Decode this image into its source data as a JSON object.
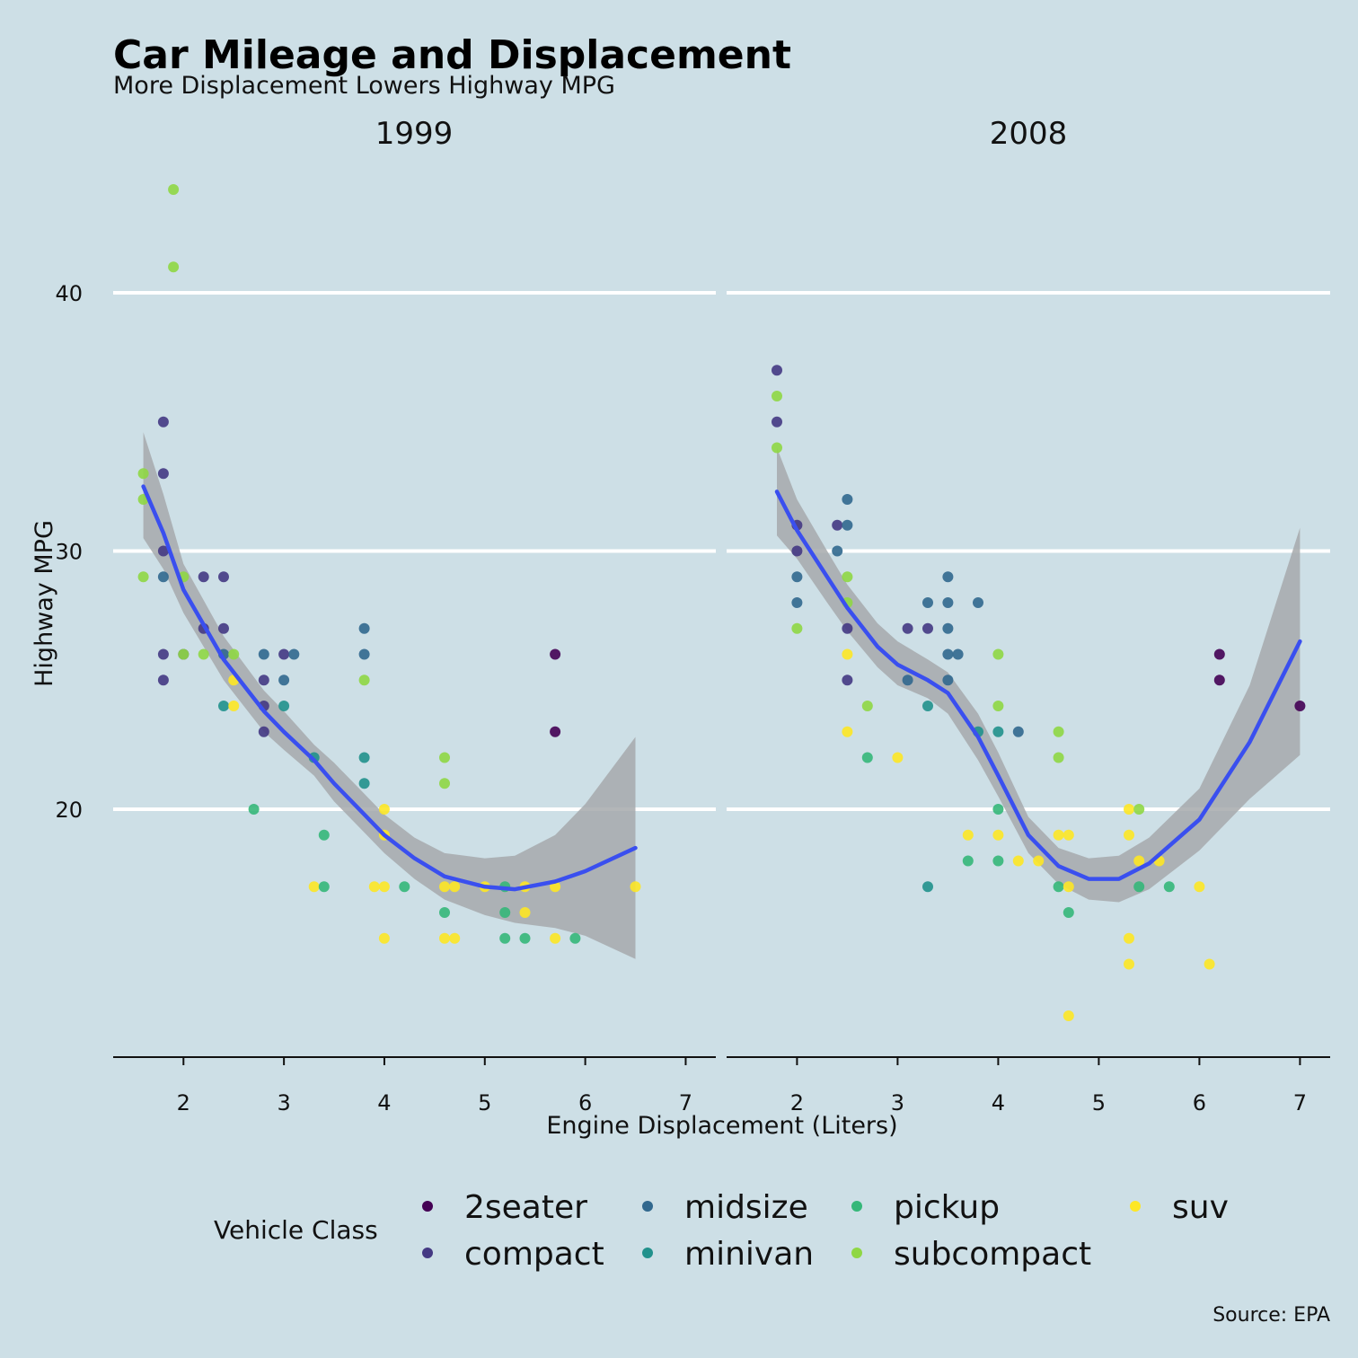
{
  "title": "Car Mileage and Displacement",
  "subtitle": "More Displacement Lowers Highway MPG",
  "caption": "Source: EPA",
  "colors": {
    "background": "#cddfe6",
    "gridline": "#ffffff",
    "smooth_line": "#3a4fef",
    "ribbon": "#a6a9ab"
  },
  "chart_data": {
    "type": "scatter",
    "facets": [
      "1999",
      "2008"
    ],
    "xlabel": "Engine Displacement (Liters)",
    "ylabel": "Highway MPG",
    "xlim": [
      1.3,
      7.3
    ],
    "ylim": [
      10.5,
      44.5
    ],
    "x_ticks": [
      2,
      3,
      4,
      5,
      6,
      7
    ],
    "y_ticks": [
      20,
      30,
      40
    ],
    "grid": "horizontal major",
    "legend": {
      "title": "Vehicle Class",
      "position": "bottom",
      "entries": [
        {
          "name": "2seater",
          "color": "#440154"
        },
        {
          "name": "compact",
          "color": "#443983"
        },
        {
          "name": "midsize",
          "color": "#31688e"
        },
        {
          "name": "minivan",
          "color": "#21918c"
        },
        {
          "name": "pickup",
          "color": "#35b779"
        },
        {
          "name": "subcompact",
          "color": "#8fd744"
        },
        {
          "name": "suv",
          "color": "#fde725"
        }
      ]
    },
    "points": {
      "1999": [
        [
          1.6,
          33,
          "subcompact"
        ],
        [
          1.6,
          32,
          "subcompact"
        ],
        [
          1.6,
          29,
          "subcompact"
        ],
        [
          1.8,
          35,
          "compact"
        ],
        [
          1.8,
          33,
          "compact"
        ],
        [
          1.8,
          30,
          "compact"
        ],
        [
          1.8,
          29,
          "midsize"
        ],
        [
          1.8,
          26,
          "compact"
        ],
        [
          1.8,
          25,
          "compact"
        ],
        [
          1.9,
          44,
          "subcompact"
        ],
        [
          1.9,
          41,
          "subcompact"
        ],
        [
          2.0,
          29,
          "subcompact"
        ],
        [
          2.0,
          26,
          "compact"
        ],
        [
          2.0,
          26,
          "subcompact"
        ],
        [
          2.2,
          29,
          "compact"
        ],
        [
          2.2,
          27,
          "compact"
        ],
        [
          2.2,
          26,
          "subcompact"
        ],
        [
          2.4,
          29,
          "compact"
        ],
        [
          2.4,
          27,
          "compact"
        ],
        [
          2.4,
          26,
          "midsize"
        ],
        [
          2.4,
          24,
          "minivan"
        ],
        [
          2.5,
          26,
          "subcompact"
        ],
        [
          2.5,
          25,
          "suv"
        ],
        [
          2.5,
          24,
          "suv"
        ],
        [
          2.7,
          20,
          "pickup"
        ],
        [
          2.8,
          26,
          "midsize"
        ],
        [
          2.8,
          25,
          "compact"
        ],
        [
          2.8,
          24,
          "compact"
        ],
        [
          2.8,
          23,
          "compact"
        ],
        [
          3.0,
          26,
          "compact"
        ],
        [
          3.0,
          25,
          "midsize"
        ],
        [
          3.0,
          24,
          "minivan"
        ],
        [
          3.1,
          26,
          "midsize"
        ],
        [
          3.3,
          22,
          "minivan"
        ],
        [
          3.3,
          17,
          "suv"
        ],
        [
          3.4,
          19,
          "pickup"
        ],
        [
          3.4,
          17,
          "pickup"
        ],
        [
          3.8,
          27,
          "midsize"
        ],
        [
          3.8,
          26,
          "midsize"
        ],
        [
          3.8,
          25,
          "subcompact"
        ],
        [
          3.8,
          22,
          "minivan"
        ],
        [
          3.8,
          21,
          "minivan"
        ],
        [
          3.9,
          17,
          "suv"
        ],
        [
          4.0,
          20,
          "suv"
        ],
        [
          4.0,
          19,
          "suv"
        ],
        [
          4.0,
          17,
          "suv"
        ],
        [
          4.0,
          15,
          "suv"
        ],
        [
          4.2,
          17,
          "pickup"
        ],
        [
          4.6,
          22,
          "subcompact"
        ],
        [
          4.6,
          21,
          "subcompact"
        ],
        [
          4.6,
          17,
          "suv"
        ],
        [
          4.6,
          16,
          "pickup"
        ],
        [
          4.6,
          15,
          "suv"
        ],
        [
          4.7,
          17,
          "suv"
        ],
        [
          4.7,
          15,
          "suv"
        ],
        [
          5.0,
          17,
          "suv"
        ],
        [
          5.2,
          17,
          "pickup"
        ],
        [
          5.2,
          16,
          "pickup"
        ],
        [
          5.2,
          15,
          "pickup"
        ],
        [
          5.4,
          17,
          "suv"
        ],
        [
          5.4,
          16,
          "suv"
        ],
        [
          5.4,
          15,
          "pickup"
        ],
        [
          5.7,
          26,
          "2seater"
        ],
        [
          5.7,
          23,
          "2seater"
        ],
        [
          5.7,
          17,
          "suv"
        ],
        [
          5.7,
          15,
          "suv"
        ],
        [
          5.9,
          15,
          "pickup"
        ],
        [
          6.5,
          17,
          "suv"
        ]
      ],
      "2008": [
        [
          1.8,
          37,
          "compact"
        ],
        [
          1.8,
          36,
          "subcompact"
        ],
        [
          1.8,
          35,
          "compact"
        ],
        [
          1.8,
          34,
          "subcompact"
        ],
        [
          2.0,
          31,
          "compact"
        ],
        [
          2.0,
          30,
          "compact"
        ],
        [
          2.0,
          29,
          "midsize"
        ],
        [
          2.0,
          28,
          "midsize"
        ],
        [
          2.0,
          27,
          "subcompact"
        ],
        [
          2.4,
          31,
          "compact"
        ],
        [
          2.4,
          30,
          "midsize"
        ],
        [
          2.5,
          32,
          "midsize"
        ],
        [
          2.5,
          31,
          "midsize"
        ],
        [
          2.5,
          29,
          "subcompact"
        ],
        [
          2.5,
          28,
          "subcompact"
        ],
        [
          2.5,
          27,
          "compact"
        ],
        [
          2.5,
          26,
          "suv"
        ],
        [
          2.5,
          25,
          "compact"
        ],
        [
          2.5,
          23,
          "suv"
        ],
        [
          2.7,
          24,
          "subcompact"
        ],
        [
          2.7,
          22,
          "pickup"
        ],
        [
          3.0,
          22,
          "suv"
        ],
        [
          3.1,
          27,
          "compact"
        ],
        [
          3.1,
          25,
          "midsize"
        ],
        [
          3.3,
          28,
          "midsize"
        ],
        [
          3.3,
          27,
          "compact"
        ],
        [
          3.3,
          24,
          "minivan"
        ],
        [
          3.3,
          17,
          "minivan"
        ],
        [
          3.5,
          29,
          "midsize"
        ],
        [
          3.5,
          28,
          "midsize"
        ],
        [
          3.5,
          27,
          "midsize"
        ],
        [
          3.5,
          26,
          "midsize"
        ],
        [
          3.5,
          25,
          "midsize"
        ],
        [
          3.6,
          26,
          "midsize"
        ],
        [
          3.7,
          19,
          "suv"
        ],
        [
          3.7,
          18,
          "pickup"
        ],
        [
          3.8,
          28,
          "midsize"
        ],
        [
          3.8,
          23,
          "minivan"
        ],
        [
          4.0,
          26,
          "subcompact"
        ],
        [
          4.0,
          24,
          "subcompact"
        ],
        [
          4.0,
          23,
          "minivan"
        ],
        [
          4.0,
          20,
          "pickup"
        ],
        [
          4.0,
          19,
          "suv"
        ],
        [
          4.0,
          18,
          "pickup"
        ],
        [
          4.2,
          23,
          "midsize"
        ],
        [
          4.2,
          18,
          "suv"
        ],
        [
          4.4,
          18,
          "suv"
        ],
        [
          4.6,
          23,
          "subcompact"
        ],
        [
          4.6,
          22,
          "subcompact"
        ],
        [
          4.6,
          19,
          "suv"
        ],
        [
          4.6,
          17,
          "pickup"
        ],
        [
          4.7,
          19,
          "suv"
        ],
        [
          4.7,
          17,
          "suv"
        ],
        [
          4.7,
          16,
          "pickup"
        ],
        [
          4.7,
          12,
          "suv"
        ],
        [
          5.3,
          20,
          "suv"
        ],
        [
          5.3,
          19,
          "suv"
        ],
        [
          5.3,
          15,
          "suv"
        ],
        [
          5.3,
          14,
          "suv"
        ],
        [
          5.4,
          20,
          "subcompact"
        ],
        [
          5.4,
          18,
          "suv"
        ],
        [
          5.4,
          17,
          "pickup"
        ],
        [
          5.6,
          18,
          "suv"
        ],
        [
          5.7,
          17,
          "pickup"
        ],
        [
          6.0,
          17,
          "suv"
        ],
        [
          6.1,
          14,
          "suv"
        ],
        [
          6.2,
          26,
          "2seater"
        ],
        [
          6.2,
          25,
          "2seater"
        ],
        [
          7.0,
          24,
          "2seater"
        ]
      ]
    },
    "smooth": {
      "method": "loess",
      "1999": {
        "x": [
          1.6,
          1.8,
          2.0,
          2.4,
          2.8,
          3.0,
          3.3,
          3.5,
          3.8,
          4.0,
          4.3,
          4.6,
          5.0,
          5.3,
          5.7,
          6.0,
          6.5
        ],
        "y": [
          32.5,
          30.7,
          28.5,
          25.8,
          23.8,
          23.0,
          21.9,
          21.0,
          19.8,
          19.0,
          18.1,
          17.4,
          17.0,
          16.9,
          17.2,
          17.6,
          18.5
        ],
        "lo": [
          30.5,
          29.3,
          27.6,
          25.0,
          23.0,
          22.3,
          21.3,
          20.3,
          19.1,
          18.3,
          17.3,
          16.5,
          15.9,
          15.6,
          15.4,
          15.1,
          14.2
        ],
        "hi": [
          34.6,
          32.2,
          29.5,
          26.7,
          24.6,
          23.8,
          22.5,
          21.8,
          20.6,
          19.8,
          18.9,
          18.3,
          18.1,
          18.2,
          19.0,
          20.2,
          22.8
        ]
      },
      "2008": {
        "x": [
          1.8,
          2.0,
          2.3,
          2.5,
          2.8,
          3.0,
          3.3,
          3.5,
          3.8,
          4.0,
          4.3,
          4.6,
          4.9,
          5.2,
          5.5,
          6.0,
          6.5,
          7.0
        ],
        "y": [
          32.3,
          30.8,
          29.0,
          27.8,
          26.3,
          25.6,
          25.0,
          24.5,
          22.8,
          21.3,
          19.0,
          17.8,
          17.3,
          17.3,
          17.9,
          19.6,
          22.6,
          26.5
        ],
        "lo": [
          30.6,
          29.7,
          28.0,
          26.9,
          25.5,
          24.8,
          24.3,
          23.7,
          21.9,
          20.5,
          18.3,
          17.1,
          16.5,
          16.4,
          16.9,
          18.4,
          20.4,
          22.1
        ],
        "hi": [
          34.0,
          32.0,
          30.0,
          28.7,
          27.2,
          26.5,
          25.8,
          25.3,
          23.7,
          22.2,
          19.7,
          18.5,
          18.1,
          18.2,
          18.9,
          20.8,
          24.8,
          30.9
        ]
      }
    }
  }
}
